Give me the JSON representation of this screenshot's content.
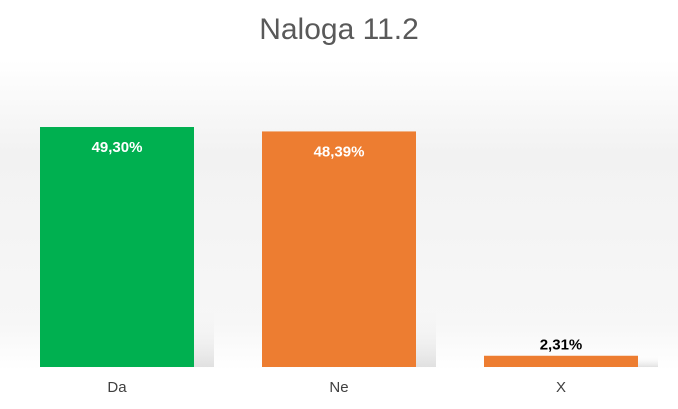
{
  "chart_data": {
    "type": "bar",
    "title": "Naloga 11.2",
    "categories": [
      "Da",
      "Ne",
      "X"
    ],
    "values": [
      49.3,
      48.39,
      2.31
    ],
    "value_labels": [
      "49,30%",
      "48,39%",
      "2,31%"
    ],
    "colors": [
      "#00b050",
      "#ed7d31",
      "#ed7d31"
    ]
  }
}
